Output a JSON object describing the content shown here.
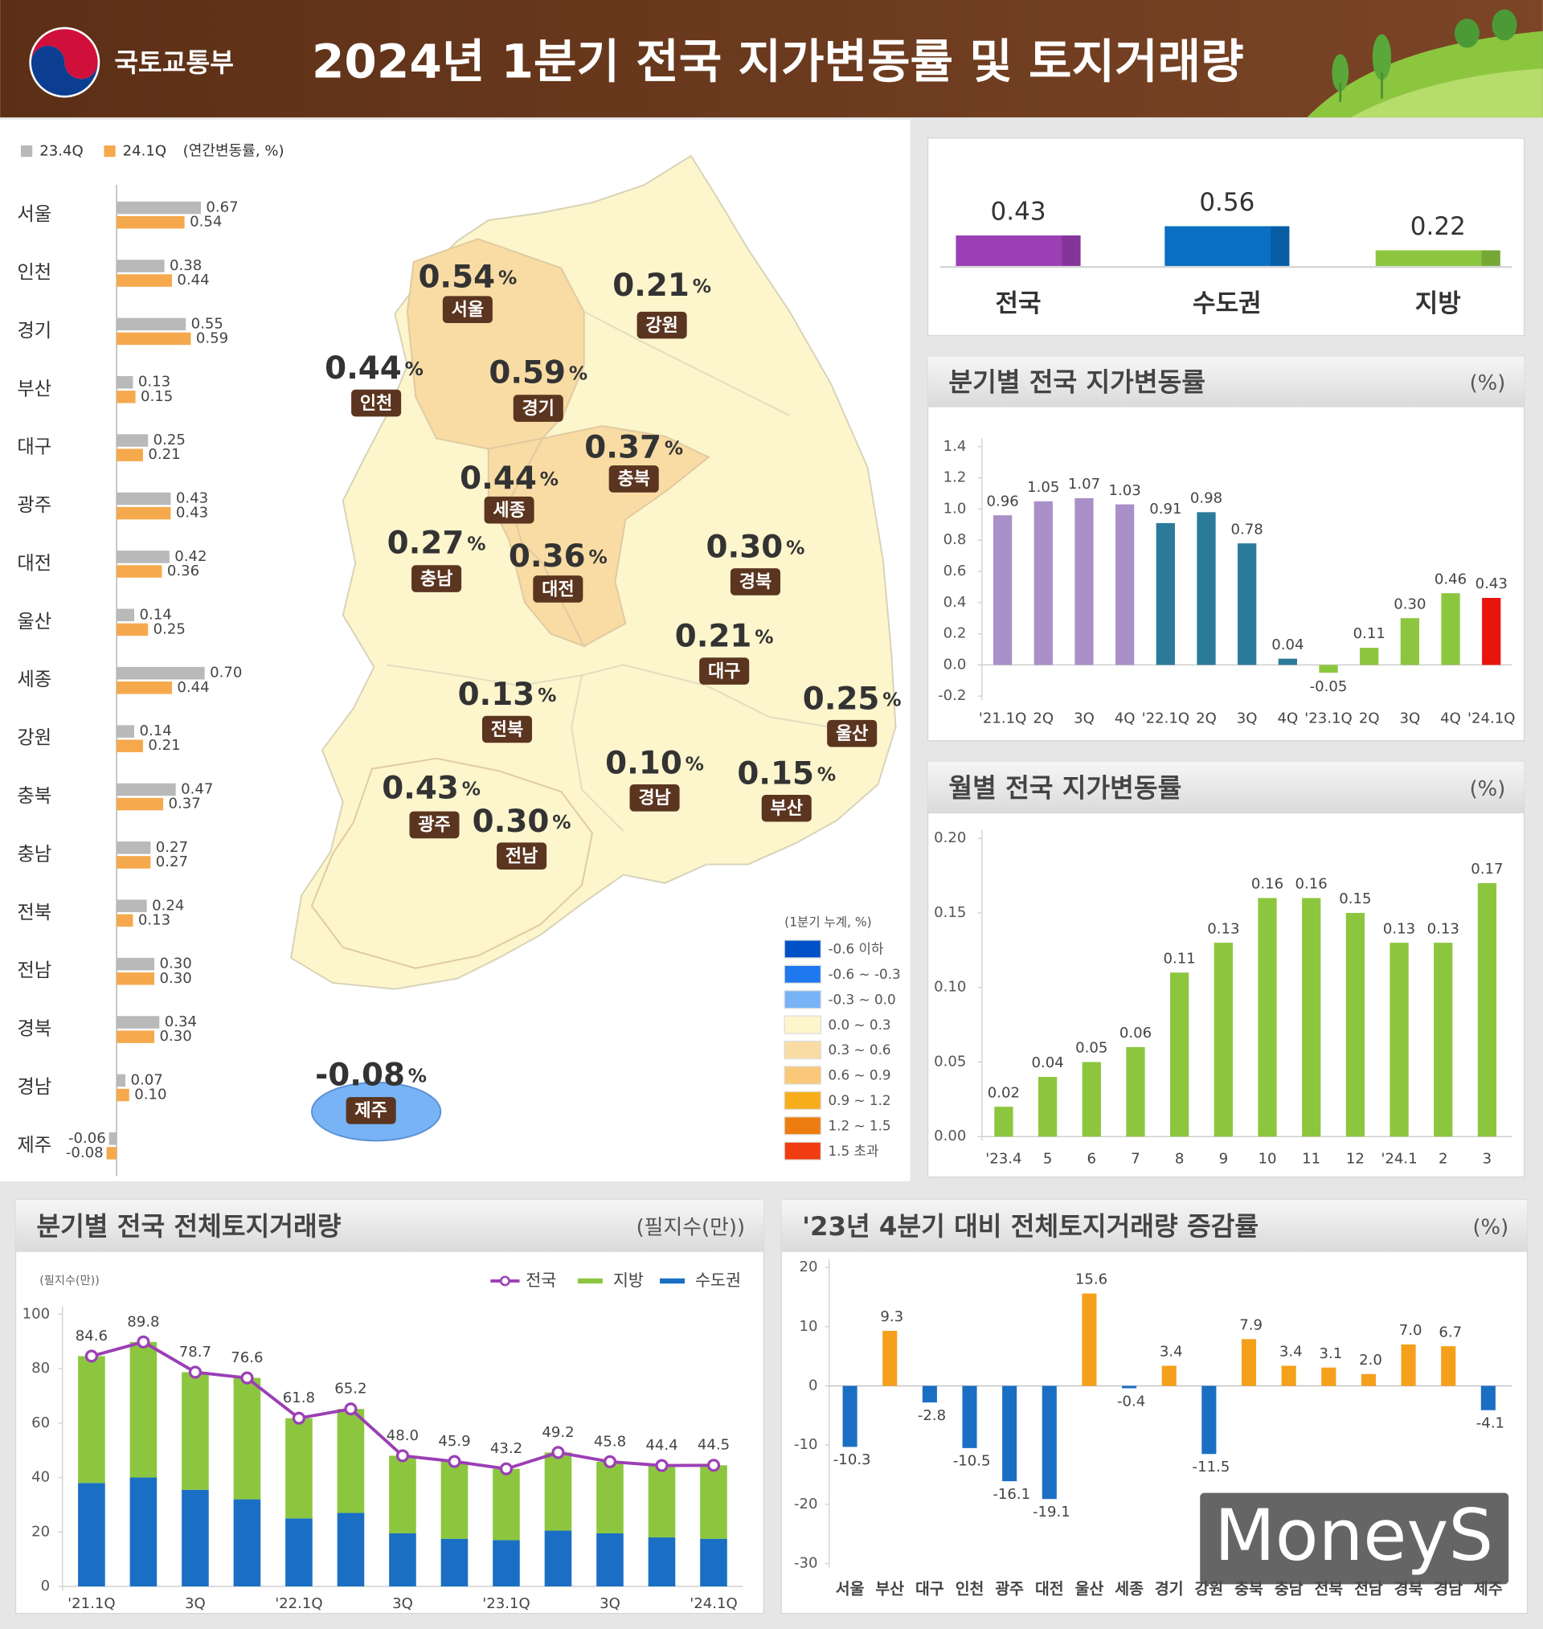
{
  "header": {
    "org": "국토교통부",
    "title": "2024년 1분기 전국 지가변동률 및 토지거래량"
  },
  "watermark": "MoneyS",
  "map": {
    "unit": "%",
    "legend_title": "(1분기 누계, %)",
    "legend": [
      "-0.6 이하",
      "-0.6 ~ -0.3",
      "-0.3 ~ 0.0",
      "0.0 ~ 0.3",
      "0.3 ~ 0.6",
      "0.6 ~ 0.9",
      "0.9 ~ 1.2",
      "1.2 ~ 1.5",
      "1.5 초과"
    ],
    "bins": [
      -0.6,
      -0.3,
      0,
      0.3,
      0.6,
      0.9,
      1.2,
      1.5
    ],
    "colors": [
      "#0050c8",
      "#1e78f0",
      "#78b4f5",
      "#fdf5cc",
      "#f8dca4",
      "#f9c878",
      "#f8ad1a",
      "#ee7d10",
      "#f03c10"
    ],
    "regions": [
      {
        "name": "서울",
        "value": 0.54,
        "value_label": "0.54"
      },
      {
        "name": "강원",
        "value": 0.21,
        "value_label": "0.21"
      },
      {
        "name": "인천",
        "value": 0.44,
        "value_label": "0.44"
      },
      {
        "name": "경기",
        "value": 0.59,
        "value_label": "0.59"
      },
      {
        "name": "충북",
        "value": 0.37,
        "value_label": "0.37"
      },
      {
        "name": "세종",
        "value": 0.44,
        "value_label": "0.44"
      },
      {
        "name": "충남",
        "value": 0.27,
        "value_label": "0.27"
      },
      {
        "name": "대전",
        "value": 0.36,
        "value_label": "0.36"
      },
      {
        "name": "경북",
        "value": 0.3,
        "value_label": "0.30"
      },
      {
        "name": "대구",
        "value": 0.21,
        "value_label": "0.21"
      },
      {
        "name": "전북",
        "value": 0.13,
        "value_label": "0.13"
      },
      {
        "name": "울산",
        "value": 0.25,
        "value_label": "0.25"
      },
      {
        "name": "경남",
        "value": 0.1,
        "value_label": "0.10"
      },
      {
        "name": "부산",
        "value": 0.15,
        "value_label": "0.15"
      },
      {
        "name": "광주",
        "value": 0.43,
        "value_label": "0.43"
      },
      {
        "name": "전남",
        "value": 0.3,
        "value_label": "0.30"
      },
      {
        "name": "제주",
        "value": -0.08,
        "value_label": "-0.08"
      }
    ]
  },
  "chart_data": [
    {
      "type": "hbar",
      "legend_note": "(연간변동률, %)",
      "categories": [
        "서울",
        "인천",
        "경기",
        "부산",
        "대구",
        "광주",
        "대전",
        "울산",
        "세종",
        "강원",
        "충북",
        "충남",
        "전북",
        "전남",
        "경북",
        "경남",
        "제주"
      ],
      "series": [
        {
          "name": "23.4Q",
          "color": "#b9b9b9",
          "values": [
            0.67,
            0.38,
            0.55,
            0.13,
            0.25,
            0.43,
            0.42,
            0.14,
            0.7,
            0.14,
            0.47,
            0.27,
            0.24,
            0.3,
            0.34,
            0.07,
            -0.06
          ],
          "value_labels": [
            "0.67",
            "0.38",
            "0.55",
            "0.13",
            "0.25",
            "0.43",
            "0.42",
            "0.14",
            "0.70",
            "0.14",
            "0.47",
            "0.27",
            "0.24",
            "0.30",
            "0.34",
            "0.07",
            "-0.06"
          ]
        },
        {
          "name": "24.1Q",
          "color": "#f5a94c",
          "values": [
            0.54,
            0.44,
            0.59,
            0.15,
            0.21,
            0.43,
            0.36,
            0.25,
            0.44,
            0.21,
            0.37,
            0.27,
            0.13,
            0.3,
            0.3,
            0.1,
            -0.08
          ],
          "value_labels": [
            "0.54",
            "0.44",
            "0.59",
            "0.15",
            "0.21",
            "0.43",
            "0.36",
            "0.25",
            "0.44",
            "0.21",
            "0.37",
            "0.27",
            "0.13",
            "0.30",
            "0.30",
            "0.10",
            "-0.08"
          ]
        }
      ],
      "xlim": [
        -0.1,
        0.8
      ]
    },
    {
      "type": "summary-bar",
      "categories": [
        "전국",
        "수도권",
        "지방"
      ],
      "values": [
        0.43,
        0.56,
        0.22
      ],
      "colors": [
        "#9b3fb5",
        "#0a6fc2",
        "#8cc63f"
      ],
      "ylim": [
        0,
        0.6
      ]
    },
    {
      "type": "bar",
      "title": "분기별 전국 지가변동률",
      "unit": "(%)",
      "categories": [
        "'21.1Q",
        "2Q",
        "3Q",
        "4Q",
        "'22.1Q",
        "2Q",
        "3Q",
        "4Q",
        "'23.1Q",
        "2Q",
        "3Q",
        "4Q",
        "'24.1Q"
      ],
      "values": [
        0.96,
        1.05,
        1.07,
        1.03,
        0.91,
        0.98,
        0.78,
        0.04,
        -0.05,
        0.11,
        0.3,
        0.46,
        0.43
      ],
      "value_labels": [
        "0.96",
        "1.05",
        "1.07",
        "1.03",
        "0.91",
        "0.98",
        "0.78",
        "0.04",
        "-0.05",
        "0.11",
        "0.30",
        "0.46",
        "0.43"
      ],
      "colors": [
        "#aa90c8",
        "#aa90c8",
        "#aa90c8",
        "#aa90c8",
        "#2b7a9a",
        "#2b7a9a",
        "#2b7a9a",
        "#2b7a9a",
        "#8cc63f",
        "#8cc63f",
        "#8cc63f",
        "#8cc63f",
        "#e8140e"
      ],
      "ylim": [
        -0.2,
        1.4
      ],
      "yticks": [
        -0.2,
        {
          "value": 0,
          "label": "0.0"
        },
        0.2,
        0.4,
        0.6,
        0.8,
        {
          "value": 1,
          "label": "1.0"
        },
        1.2,
        1.4
      ]
    },
    {
      "type": "bar",
      "title": "월별 전국 지가변동률",
      "unit": "(%)",
      "categories": [
        "'23.4",
        "5",
        "6",
        "7",
        "8",
        "9",
        "10",
        "11",
        "12",
        "'24.1",
        "2",
        "3"
      ],
      "values": [
        0.02,
        0.04,
        0.05,
        0.06,
        0.11,
        0.13,
        0.16,
        0.16,
        0.15,
        0.13,
        0.13,
        0.17
      ],
      "value_labels": [
        "0.02",
        "0.04",
        "0.05",
        "0.06",
        "0.11",
        "0.13",
        "0.16",
        "0.16",
        "0.15",
        "0.13",
        "0.13",
        "0.17"
      ],
      "color": "#8cc63f",
      "ylim": [
        0,
        0.2
      ],
      "yticks": [
        {
          "value": 0,
          "label": "0.00"
        },
        0.05,
        {
          "value": 0.1,
          "label": "0.10"
        },
        0.15,
        {
          "value": 0.2,
          "label": "0.20"
        }
      ]
    },
    {
      "type": "stacked-combo",
      "title": "분기별 전국 전체토지거래량",
      "unit": "(필지수(만))",
      "axis_label": "(필지수(만))",
      "categories": [
        "'21.1Q",
        null,
        "3Q",
        null,
        "'22.1Q",
        null,
        "3Q",
        null,
        "'23.1Q",
        null,
        "3Q",
        null,
        "'24.1Q"
      ],
      "series": [
        {
          "name": "전국",
          "kind": "line",
          "color": "#9b3fb5",
          "values": [
            84.6,
            89.8,
            78.7,
            76.6,
            61.8,
            65.2,
            48.0,
            45.9,
            43.2,
            49.2,
            45.8,
            44.4,
            44.5
          ],
          "value_labels": [
            "84.6",
            "89.8",
            "78.7",
            "76.6",
            "61.8",
            "65.2",
            "48.0",
            "45.9",
            "43.2",
            "49.2",
            "45.8",
            "44.4",
            "44.5"
          ]
        },
        {
          "name": "지방",
          "color": "#8cc63f",
          "values": [
            46.6,
            49.8,
            43.2,
            44.6,
            36.8,
            38.2,
            28.5,
            28.4,
            26.2,
            28.7,
            26.3,
            26.4,
            27.0
          ]
        },
        {
          "name": "수도권",
          "color": "#1a6fc4",
          "values": [
            38.0,
            40.0,
            35.5,
            32.0,
            25.0,
            27.0,
            19.5,
            17.5,
            17.0,
            20.5,
            19.5,
            18.0,
            17.5
          ]
        }
      ],
      "ylim": [
        0,
        100
      ],
      "yticks": [
        0,
        20,
        40,
        60,
        80,
        100
      ]
    },
    {
      "type": "diverging-bar",
      "title": "'23년 4분기 대비 전체토지거래량 증감률",
      "unit": "(%)",
      "categories": [
        "서울",
        "부산",
        "대구",
        "인천",
        "광주",
        "대전",
        "울산",
        "세종",
        "경기",
        "강원",
        "충북",
        "충남",
        "전북",
        "전남",
        "경북",
        "경남",
        "제주"
      ],
      "values": [
        -10.3,
        9.3,
        -2.8,
        -10.5,
        -16.1,
        -19.1,
        15.6,
        -0.4,
        3.4,
        -11.5,
        7.9,
        3.4,
        3.1,
        2.0,
        7.0,
        6.7,
        -4.1
      ],
      "value_labels": [
        "-10.3",
        "9.3",
        "-2.8",
        "-10.5",
        "-16.1",
        "-19.1",
        "15.6",
        "-0.4",
        "3.4",
        "-11.5",
        "7.9",
        "3.4",
        "3.1",
        "2.0",
        "7.0",
        "6.7",
        "-4.1"
      ],
      "color_positive": "#f5a01a",
      "color_negative": "#1a6fc4",
      "ylim": [
        -30,
        20
      ],
      "yticks": [
        -30,
        -20,
        -10,
        0,
        10,
        20
      ]
    }
  ]
}
